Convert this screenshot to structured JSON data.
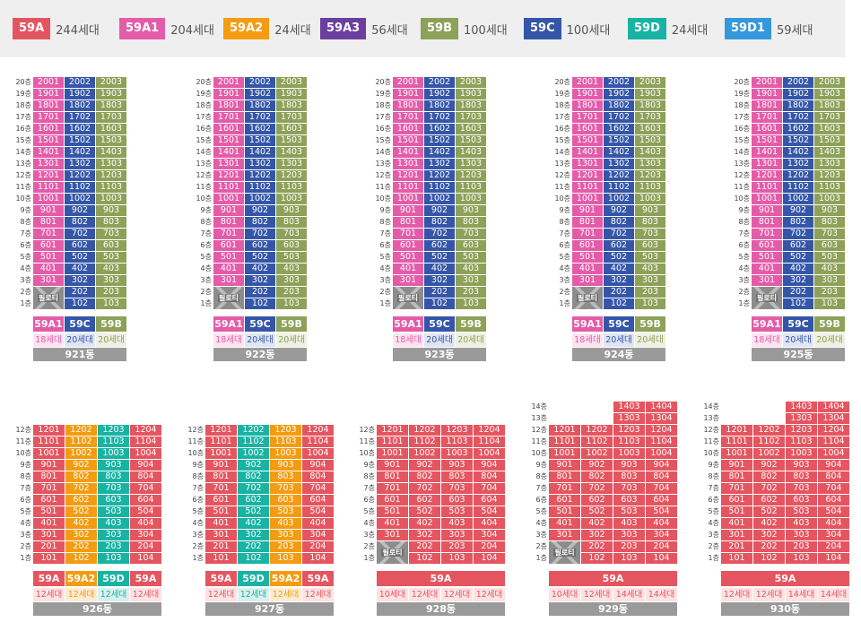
{
  "colors": {
    "59A": "#e55560",
    "59A1": "#e45ca9",
    "59A2": "#f39c12",
    "59A3": "#6b3fa0",
    "59B": "#8da158",
    "59C": "#3556a8",
    "59D": "#19b3a3",
    "59D1": "#3598db"
  },
  "count_bg": {
    "59A": "#fde3e4",
    "59A1": "#fde3ef",
    "59A2": "#fdecd3",
    "59B": "#eef0e2",
    "59C": "#dfe5f4",
    "59D": "#d9f1ee"
  },
  "legend": [
    {
      "type": "59A",
      "label": "59A",
      "count": "244세대"
    },
    {
      "type": "59A1",
      "label": "59A1",
      "count": "204세대"
    },
    {
      "type": "59A2",
      "label": "59A2",
      "count": "24세대"
    },
    {
      "type": "59A3",
      "label": "59A3",
      "count": "56세대"
    },
    {
      "type": "59B",
      "label": "59B",
      "count": "100세대"
    },
    {
      "type": "59C",
      "label": "59C",
      "count": "100세대"
    },
    {
      "type": "59D",
      "label": "59D",
      "count": "24세대"
    },
    {
      "type": "59D1",
      "label": "59D1",
      "count": "59세대"
    }
  ],
  "pilotis_label": "필로티",
  "buildings_top": [
    {
      "name": "921동",
      "floors": 20,
      "lines": 3,
      "pilotis_lines": [
        0
      ],
      "column_types": [
        "59A1",
        "59C",
        "59B"
      ],
      "floor_overrides": {
        "20": [
          "59A1",
          "59C",
          "59B"
        ]
      },
      "footer": [
        {
          "type": "59A1",
          "label": "59A1",
          "count": "18세대"
        },
        {
          "type": "59C",
          "label": "59C",
          "count": "20세대"
        },
        {
          "type": "59B",
          "label": "59B",
          "count": "20세대"
        }
      ]
    },
    {
      "name": "922동",
      "floors": 20,
      "lines": 3,
      "pilotis_lines": [
        0
      ],
      "column_types": [
        "59A1",
        "59C",
        "59B"
      ],
      "footer": [
        {
          "type": "59A1",
          "label": "59A1",
          "count": "18세대"
        },
        {
          "type": "59C",
          "label": "59C",
          "count": "20세대"
        },
        {
          "type": "59B",
          "label": "59B",
          "count": "20세대"
        }
      ]
    },
    {
      "name": "923동",
      "floors": 20,
      "lines": 3,
      "pilotis_lines": [
        0
      ],
      "column_types": [
        "59A1",
        "59C",
        "59B"
      ],
      "footer": [
        {
          "type": "59A1",
          "label": "59A1",
          "count": "18세대"
        },
        {
          "type": "59C",
          "label": "59C",
          "count": "20세대"
        },
        {
          "type": "59B",
          "label": "59B",
          "count": "20세대"
        }
      ]
    },
    {
      "name": "924동",
      "floors": 20,
      "lines": 3,
      "pilotis_lines": [
        0
      ],
      "column_types": [
        "59A1",
        "59C",
        "59B"
      ],
      "footer": [
        {
          "type": "59A1",
          "label": "59A1",
          "count": "18세대"
        },
        {
          "type": "59C",
          "label": "59C",
          "count": "20세대"
        },
        {
          "type": "59B",
          "label": "59B",
          "count": "20세대"
        }
      ]
    },
    {
      "name": "925동",
      "floors": 20,
      "lines": 3,
      "pilotis_lines": [
        0
      ],
      "column_types": [
        "59A1",
        "59C",
        "59B"
      ],
      "footer": [
        {
          "type": "59A1",
          "label": "59A1",
          "count": "18세대"
        },
        {
          "type": "59C",
          "label": "59C",
          "count": "20세대"
        },
        {
          "type": "59B",
          "label": "59B",
          "count": "20세대"
        }
      ]
    }
  ],
  "buildings_bottom": [
    {
      "name": "926동",
      "floors": 12,
      "lines": 4,
      "pilotis_lines": [],
      "column_types": [
        "59A",
        "59A2",
        "59D",
        "59A"
      ],
      "footer": [
        {
          "type": "59A",
          "label": "59A",
          "count": "12세대"
        },
        {
          "type": "59A2",
          "label": "59A2",
          "count": "12세대"
        },
        {
          "type": "59D",
          "label": "59D",
          "count": "12세대"
        },
        {
          "type": "59A",
          "label": "59A",
          "count": "12세대"
        }
      ]
    },
    {
      "name": "927동",
      "floors": 12,
      "lines": 4,
      "pilotis_lines": [],
      "column_types": [
        "59A",
        "59D",
        "59A2",
        "59A"
      ],
      "footer": [
        {
          "type": "59A",
          "label": "59A",
          "count": "12세대"
        },
        {
          "type": "59D",
          "label": "59D",
          "count": "12세대"
        },
        {
          "type": "59A2",
          "label": "59A2",
          "count": "12세대"
        },
        {
          "type": "59A",
          "label": "59A",
          "count": "12세대"
        }
      ]
    },
    {
      "name": "928동",
      "floors": 12,
      "lines": 4,
      "pilotis_lines": [
        0
      ],
      "column_types": [
        "59A",
        "59A",
        "59A",
        "59A"
      ],
      "footer": [
        {
          "type": "59A",
          "label": "59A",
          "span": 4
        }
      ],
      "counts": [
        "10세대",
        "12세대",
        "12세대",
        "12세대"
      ]
    },
    {
      "name": "929동",
      "floors": 14,
      "lines": 4,
      "pilotis_lines": [
        0
      ],
      "short_lines": [
        0,
        1
      ],
      "column_types": [
        "59A",
        "59A",
        "59A",
        "59A"
      ],
      "footer": [
        {
          "type": "59A",
          "label": "59A",
          "span": 4
        }
      ],
      "counts": [
        "10세대",
        "12세대",
        "14세대",
        "14세대"
      ]
    },
    {
      "name": "930동",
      "floors": 14,
      "lines": 4,
      "pilotis_lines": [],
      "short_lines": [
        0,
        1
      ],
      "column_types": [
        "59A",
        "59A",
        "59A",
        "59A"
      ],
      "footer": [
        {
          "type": "59A",
          "label": "59A",
          "span": 4
        }
      ],
      "counts": [
        "12세대",
        "12세대",
        "14세대",
        "14세대"
      ]
    }
  ],
  "floor_suffix": "층"
}
